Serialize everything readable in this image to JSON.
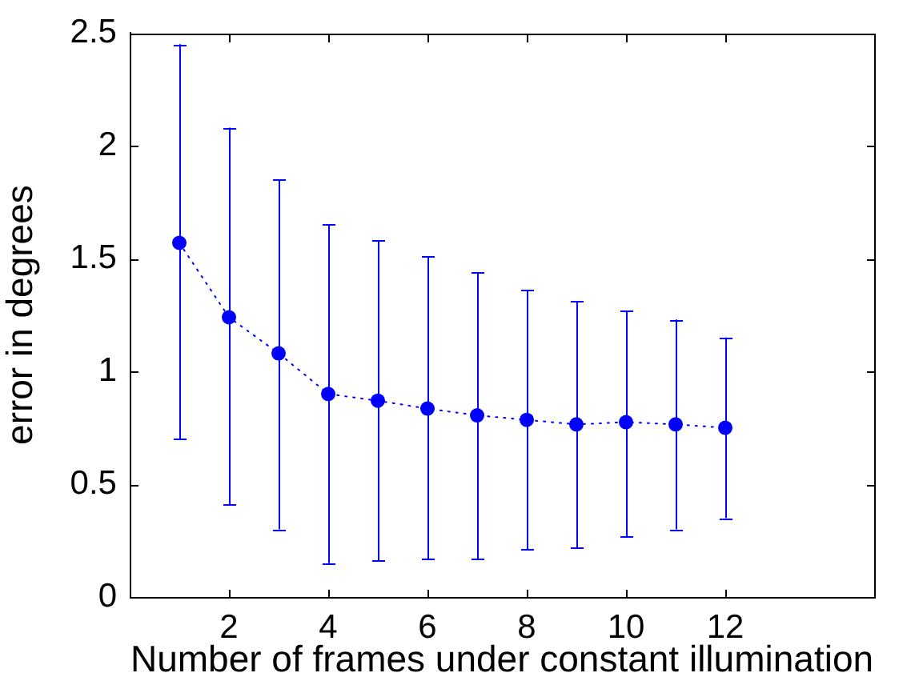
{
  "chart_data": {
    "type": "line",
    "xlabel": "Number of frames under constant illumination",
    "ylabel": "error in degrees",
    "x": [
      1,
      2,
      3,
      4,
      5,
      6,
      7,
      8,
      9,
      10,
      11,
      12
    ],
    "series": [
      {
        "color": "#0000ff",
        "values": [
          1.57,
          1.24,
          1.08,
          0.9,
          0.87,
          0.835,
          0.805,
          0.785,
          0.765,
          0.775,
          0.765,
          0.75
        ],
        "errors": [
          [
            0.7,
            2.45
          ],
          [
            0.41,
            2.08
          ],
          [
            0.3,
            1.85
          ],
          [
            0.15,
            1.65
          ],
          [
            0.16,
            1.58
          ],
          [
            0.17,
            1.51
          ],
          [
            0.17,
            1.44
          ],
          [
            0.21,
            1.36
          ],
          [
            0.22,
            1.31
          ],
          [
            0.27,
            1.27
          ],
          [
            0.3,
            1.23
          ],
          [
            0.35,
            1.15
          ]
        ]
      }
    ],
    "xlim": [
      0,
      15
    ],
    "xticks": [
      2,
      4,
      6,
      8,
      10,
      12
    ],
    "ylim": [
      0,
      2.5
    ],
    "yticks": [
      0,
      0.5,
      1,
      1.5,
      2,
      2.5
    ],
    "grid": false,
    "legend": false,
    "marker": "circle",
    "line_style": "dotted"
  }
}
